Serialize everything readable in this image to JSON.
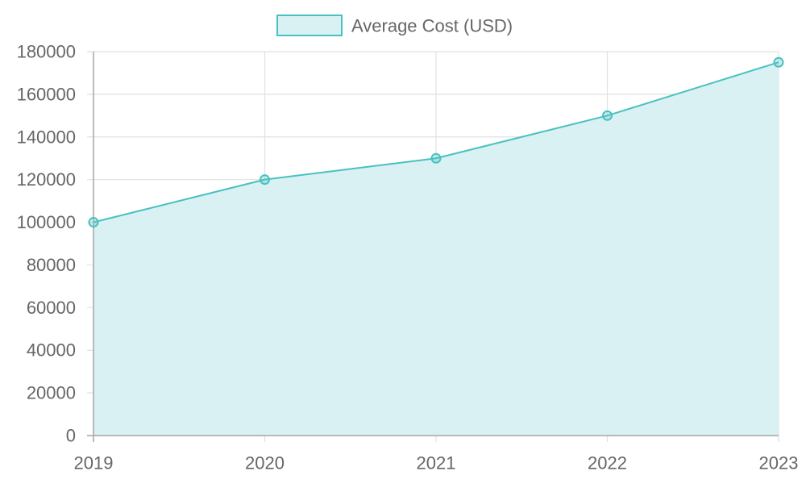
{
  "chart_data": {
    "type": "area",
    "title": "",
    "xlabel": "",
    "ylabel": "",
    "categories": [
      "2019",
      "2020",
      "2021",
      "2022",
      "2023"
    ],
    "series": [
      {
        "name": "Average Cost (USD)",
        "values": [
          100000,
          120000,
          130000,
          150000,
          175000
        ]
      }
    ],
    "ylim": [
      0,
      180000
    ],
    "yticks": [
      0,
      20000,
      40000,
      60000,
      80000,
      100000,
      120000,
      140000,
      160000,
      180000
    ],
    "grid": true,
    "legend_position": "top-center",
    "colors": {
      "line": "#4bc0c0",
      "fill": "#d9f1f2",
      "grid": "#e1e1e1",
      "axis": "#a6a6a6",
      "text": "#666666"
    }
  }
}
